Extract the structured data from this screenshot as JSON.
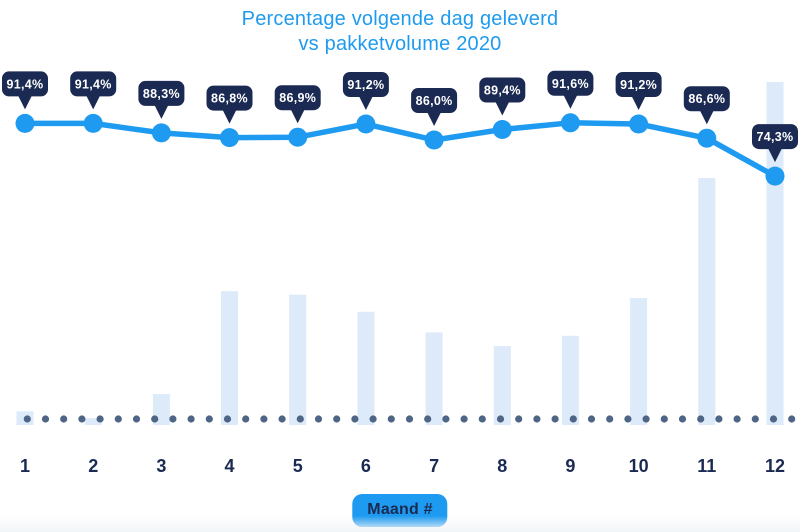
{
  "title": {
    "line1": "Percentage volgende dag geleverd",
    "line2": "vs pakketvolume 2020"
  },
  "x_axis_label": "Maand #",
  "colors": {
    "accent_blue": "#1E9BF0",
    "badge_navy": "#1B2A52",
    "badge_text": "#FFFFFF",
    "bar_fill": "#DCEAF9",
    "baseline_dot": "#4E6585",
    "month_label": "#1B2A52",
    "background": "#FFFFFF"
  },
  "chart_data": {
    "type": "combo",
    "title": "Percentage volgende dag geleverd vs pakketvolume 2020",
    "categories": [
      "1",
      "2",
      "3",
      "4",
      "5",
      "6",
      "7",
      "8",
      "9",
      "10",
      "11",
      "12"
    ],
    "xlabel": "Maand #",
    "grid": false,
    "legend_position": "none",
    "baseline": "dotted",
    "series": [
      {
        "name": "Percentage volgende dag geleverd",
        "type": "line",
        "unit": "%",
        "axis_range": [
          70,
          95
        ],
        "values": [
          91.4,
          91.4,
          88.3,
          86.8,
          86.9,
          91.2,
          86.0,
          89.4,
          91.6,
          91.2,
          86.6,
          74.3
        ],
        "point_labels": [
          "91,4%",
          "91,4%",
          "88,3%",
          "86,8%",
          "86,9%",
          "91,2%",
          "86,0%",
          "89,4%",
          "91,6%",
          "91,2%",
          "86,6%",
          "74,3%"
        ]
      },
      {
        "name": "Pakketvolume 2020",
        "type": "bar",
        "unit": "relatief volume (max = 100, geen zichtbare as)",
        "values": [
          4,
          2,
          9,
          39,
          38,
          33,
          27,
          23,
          26,
          37,
          72,
          100
        ]
      }
    ]
  }
}
